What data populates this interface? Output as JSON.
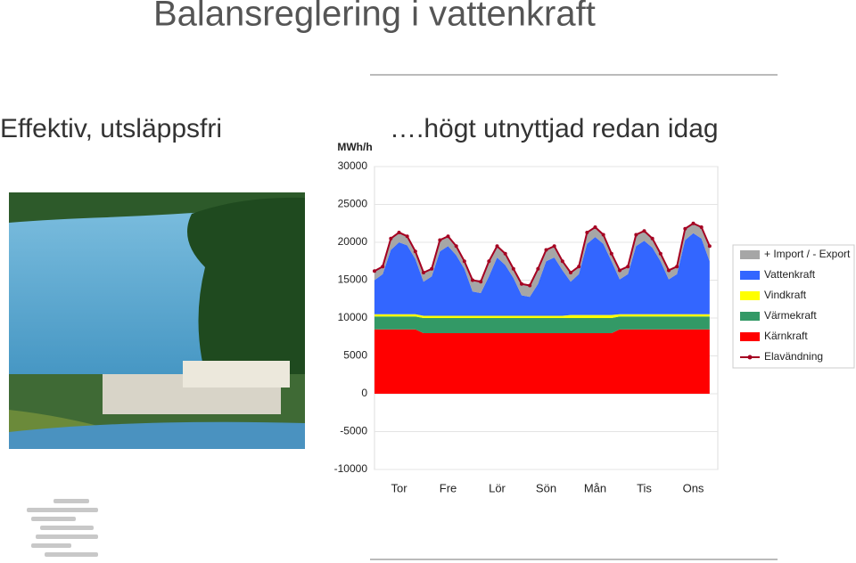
{
  "header": {
    "title": "Balansreglering i vattenkraft",
    "left_caption": "Effektiv, utsläppsfri",
    "right_caption": "….högt utnyttjad redan idag"
  },
  "chart_data": {
    "type": "stacked-area",
    "y_label": "MWh/h",
    "x": [
      0,
      4,
      8,
      12,
      16,
      20,
      24,
      28,
      32,
      36,
      40,
      44,
      48,
      52,
      56,
      60,
      64,
      68,
      72,
      76,
      80,
      84,
      88,
      92,
      96,
      100,
      104,
      108,
      112,
      116,
      120,
      124,
      128,
      132,
      136,
      140,
      144,
      148,
      152,
      156,
      160,
      164
    ],
    "xlim": [
      0,
      168
    ],
    "xticks": [
      {
        "value": 12,
        "label": "Tor"
      },
      {
        "value": 36,
        "label": "Fre"
      },
      {
        "value": 60,
        "label": "Lör"
      },
      {
        "value": 84,
        "label": "Sön"
      },
      {
        "value": 108,
        "label": "Mån"
      },
      {
        "value": 132,
        "label": "Tis"
      },
      {
        "value": 156,
        "label": "Ons"
      }
    ],
    "ylim": [
      -10000,
      30000
    ],
    "yticks": [
      -10000,
      -5000,
      0,
      5000,
      10000,
      15000,
      20000,
      25000,
      30000
    ],
    "grid": true,
    "legend": "right",
    "series": [
      {
        "name": "+ Import / - Export",
        "color": "#a6a6a6",
        "values": [
          1200,
          1000,
          1500,
          1300,
          1200,
          1000,
          1200,
          1000,
          1500,
          1300,
          1200,
          1000,
          1500,
          1500,
          2000,
          1500,
          1500,
          1200,
          1500,
          1500,
          2000,
          1500,
          1500,
          1200,
          1200,
          1000,
          1500,
          1300,
          1200,
          1000,
          1200,
          1000,
          1500,
          1300,
          1200,
          1000,
          1200,
          1000,
          1500,
          1300,
          1500,
          2000
        ]
      },
      {
        "name": "Vattenkraft",
        "color": "#3366ff",
        "values": [
          4500,
          5300,
          8500,
          9500,
          9100,
          7300,
          4500,
          5200,
          8500,
          9200,
          8000,
          6200,
          3200,
          3000,
          5200,
          7700,
          6700,
          5000,
          2700,
          2500,
          4200,
          7200,
          7700,
          6000,
          4400,
          5400,
          9400,
          10300,
          9400,
          7100,
          4600,
          5300,
          9000,
          9700,
          8800,
          7000,
          4600,
          5300,
          9800,
          10700,
          10000,
          7000
        ]
      },
      {
        "name": "Vindkraft",
        "color": "#ffff00",
        "values": [
          300,
          300,
          300,
          300,
          300,
          300,
          300,
          300,
          300,
          300,
          300,
          300,
          300,
          300,
          300,
          300,
          300,
          300,
          300,
          300,
          300,
          300,
          300,
          300,
          400,
          400,
          400,
          400,
          400,
          400,
          300,
          300,
          300,
          300,
          300,
          300,
          300,
          300,
          300,
          300,
          300,
          300
        ]
      },
      {
        "name": "Värmekraft",
        "color": "#339966",
        "values": [
          1700,
          1700,
          1700,
          1700,
          1700,
          1700,
          2000,
          2000,
          2000,
          2000,
          2000,
          2000,
          2000,
          2000,
          2000,
          2000,
          2000,
          2000,
          2000,
          2000,
          2000,
          2000,
          2000,
          2000,
          2000,
          2000,
          2000,
          2000,
          2000,
          2000,
          1700,
          1700,
          1700,
          1700,
          1700,
          1700,
          1700,
          1700,
          1700,
          1700,
          1700,
          1700
        ]
      },
      {
        "name": "Kärnkraft",
        "color": "#ff0000",
        "values": [
          8500,
          8500,
          8500,
          8500,
          8500,
          8500,
          8000,
          8000,
          8000,
          8000,
          8000,
          8000,
          8000,
          8000,
          8000,
          8000,
          8000,
          8000,
          8000,
          8000,
          8000,
          8000,
          8000,
          8000,
          8000,
          8000,
          8000,
          8000,
          8000,
          8000,
          8500,
          8500,
          8500,
          8500,
          8500,
          8500,
          8500,
          8500,
          8500,
          8500,
          8500,
          8500
        ]
      },
      {
        "name": "Elavändning",
        "type": "line",
        "color": "#a50021",
        "values": [
          16200,
          16800,
          20500,
          21300,
          20800,
          18800,
          16000,
          16500,
          20300,
          20800,
          19500,
          17500,
          15000,
          14800,
          17500,
          19500,
          18500,
          16500,
          14500,
          14300,
          16500,
          19000,
          19500,
          17500,
          16000,
          16800,
          21300,
          22000,
          21000,
          18500,
          16300,
          16800,
          21000,
          21500,
          20500,
          18500,
          16300,
          16800,
          21800,
          22500,
          22000,
          19500
        ]
      }
    ]
  }
}
